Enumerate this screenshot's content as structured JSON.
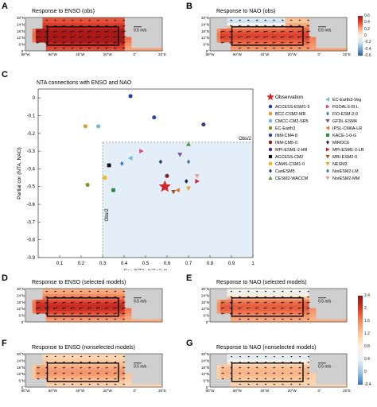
{
  "maps": [
    {
      "label": "A",
      "title": "Response to ENSO (obs)",
      "variant": "enso_strong",
      "showYTicks": true,
      "showXTicks": true
    },
    {
      "label": "B",
      "title": "Response to NAO (obs)",
      "variant": "nao_obs",
      "showYTicks": true,
      "showXTicks": true
    },
    {
      "label": "D",
      "title": "Response to ENSO (selected models)",
      "variant": "enso_sel",
      "showYTicks": true,
      "showXTicks": false
    },
    {
      "label": "E",
      "title": "Response to NAO (selected models)",
      "variant": "nao_sel",
      "showYTicks": true,
      "showXTicks": false
    },
    {
      "label": "F",
      "title": "Response to ENSO (nonselected models)",
      "variant": "enso_non",
      "showYTicks": true,
      "showXTicks": true
    },
    {
      "label": "G",
      "title": "Response to NAO (nonselected models)",
      "variant": "nao_non",
      "showYTicks": true,
      "showXTicks": true
    }
  ],
  "map_axes": {
    "lat_ticks": [
      "30°N",
      "24°N",
      "18°N",
      "12°N",
      "6°N",
      "0°"
    ],
    "lon_ticks": [
      "80°W",
      "60°W",
      "40°W",
      "20°W",
      "0°",
      "20°E"
    ],
    "ref_vector": "0.5 m/s"
  },
  "colorbars": [
    {
      "ticks": [
        "0.6",
        "0.4",
        "0.2",
        "0",
        "-0.2",
        "-0.4",
        "-0.6"
      ]
    },
    {
      "ticks": [
        "2.4",
        "2",
        "1.6",
        "1.2",
        "0.8",
        "0.4",
        "0",
        "-0.4"
      ]
    }
  ],
  "colors": {
    "warm": "#e8452c",
    "cool": "#4f92c8",
    "land": "#cfcfcf",
    "box": "#000000"
  },
  "chart_data": {
    "label": "C",
    "type": "scatter",
    "title": "NTA connections with ENSO and NAO",
    "xlabel": "Cor (NTA, Niño3.4)",
    "ylabel": "Partial cor (NTA, NAO)",
    "xlim": [
      0,
      1
    ],
    "ylim": [
      -0.9,
      0.05
    ],
    "xticks": [
      0.1,
      0.2,
      0.3,
      0.4,
      0.5,
      0.6,
      0.7,
      0.8,
      0.9,
      1
    ],
    "yticks": [
      0,
      -0.1,
      -0.2,
      -0.3,
      -0.4,
      -0.5,
      -0.6,
      -0.7,
      -0.8,
      -0.9
    ],
    "threshold_x": 0.3,
    "threshold_y": -0.25,
    "threshold_label_x": "Obs/2",
    "threshold_label_y": "Obs/2",
    "points": [
      {
        "name": "Observation",
        "x": 0.59,
        "y": -0.5,
        "marker": "star",
        "color": "#d62728"
      },
      {
        "name": "ACCESS-ESM1-5",
        "x": 0.43,
        "y": 0.01,
        "marker": "circle",
        "color": "#1f3fa8"
      },
      {
        "name": "BCC-CSM2-MR",
        "x": 0.22,
        "y": -0.16,
        "marker": "circle",
        "color": "#e39a2d"
      },
      {
        "name": "CMCC-CM2-SR5",
        "x": 0.28,
        "y": -0.16,
        "marker": "circle",
        "color": "#6fb6e6"
      },
      {
        "name": "EC-Earth3",
        "x": 0.23,
        "y": -0.49,
        "marker": "circle",
        "color": "#8b8b2a"
      },
      {
        "name": "INM-CM4-8",
        "x": 0.54,
        "y": -0.11,
        "marker": "circle",
        "color": "#2b4fa0"
      },
      {
        "name": "INM-CM5-0",
        "x": 0.6,
        "y": -0.44,
        "marker": "circle",
        "color": "#8b2020"
      },
      {
        "name": "MPI-ESM1-2-HR",
        "x": 0.77,
        "y": -0.15,
        "marker": "circle",
        "color": "#4b2d8a"
      },
      {
        "name": "ACCESS-CM2",
        "x": 0.33,
        "y": -0.38,
        "marker": "square",
        "color": "#111111"
      },
      {
        "name": "CAMS-CSM1-0",
        "x": 0.31,
        "y": -0.45,
        "marker": "square",
        "color": "#f2b928"
      },
      {
        "name": "CanESM5",
        "x": 0.57,
        "y": -0.36,
        "marker": "diamond",
        "color": "#1f4a7a"
      },
      {
        "name": "CESM2-WACCM",
        "x": 0.7,
        "y": -0.26,
        "marker": "triangle",
        "color": "#4a9b3a"
      },
      {
        "name": "EC-Earth3-Veg",
        "x": 0.43,
        "y": -0.34,
        "marker": "triangle-left",
        "color": "#5fb8e8"
      },
      {
        "name": "FGOALS-f3-L",
        "x": 0.48,
        "y": -0.3,
        "marker": "triangle-right",
        "color": "#e0457a"
      },
      {
        "name": "FIO-ESM-2-0",
        "x": 0.39,
        "y": -0.37,
        "marker": "diamond",
        "color": "#3b7fc9"
      },
      {
        "name": "GFDL-ESM4",
        "x": 0.66,
        "y": -0.32,
        "marker": "triangle-down",
        "color": "#7a4fa0"
      },
      {
        "name": "IPSL-CM6A-LR",
        "x": 0.65,
        "y": -0.52,
        "marker": "triangle-left",
        "color": "#e8762b"
      },
      {
        "name": "KACE-1-0-G",
        "x": 0.35,
        "y": -0.52,
        "marker": "square",
        "color": "#2c8a4a"
      },
      {
        "name": "MIROC6",
        "x": 0.69,
        "y": -0.47,
        "marker": "diamond",
        "color": "#1a2f5a"
      },
      {
        "name": "MPI-ESM1-2-LR",
        "x": 0.74,
        "y": -0.47,
        "marker": "triangle-right",
        "color": "#c12a2a"
      },
      {
        "name": "MRI-ESM2-0",
        "x": 0.63,
        "y": -0.53,
        "marker": "triangle-down",
        "color": "#9a5a2a"
      },
      {
        "name": "NESM3",
        "x": 0.7,
        "y": -0.51,
        "marker": "triangle-down",
        "color": "#e8a23a"
      },
      {
        "name": "NorESM2-LM",
        "x": 0.7,
        "y": -0.36,
        "marker": "diamond",
        "color": "#4a7ab8"
      },
      {
        "name": "NorESM2-MM",
        "x": 0.74,
        "y": -0.44,
        "marker": "triangle-down",
        "color": "#f09c96"
      }
    ]
  }
}
